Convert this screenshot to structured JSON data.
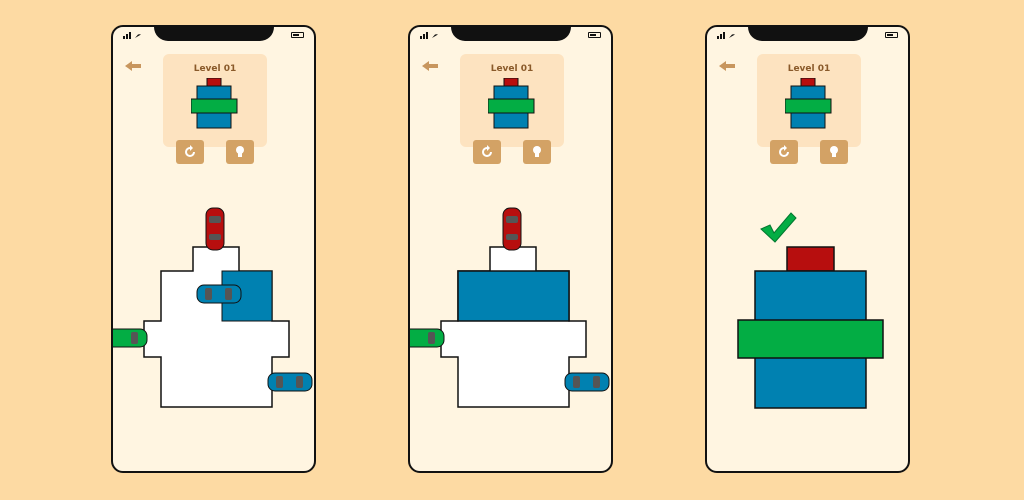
{
  "screens": [
    {
      "level_label": "Level 01",
      "stage": "start"
    },
    {
      "level_label": "Level 01",
      "stage": "progress"
    },
    {
      "level_label": "Level 01",
      "stage": "complete"
    }
  ],
  "icons": {
    "back": "back-arrow-icon",
    "restart": "restart-icon",
    "hint": "lightbulb-hint-icon",
    "success": "checkmark-icon"
  },
  "colors": {
    "background": "#fddaa3",
    "screen": "#fff5e1",
    "panel": "#fde3c0",
    "button": "#d3a265",
    "title": "#8a5a2a",
    "red": "#b70e0e",
    "blue": "#0081b1",
    "green": "#03ad44",
    "board_white": "#ffffff"
  }
}
